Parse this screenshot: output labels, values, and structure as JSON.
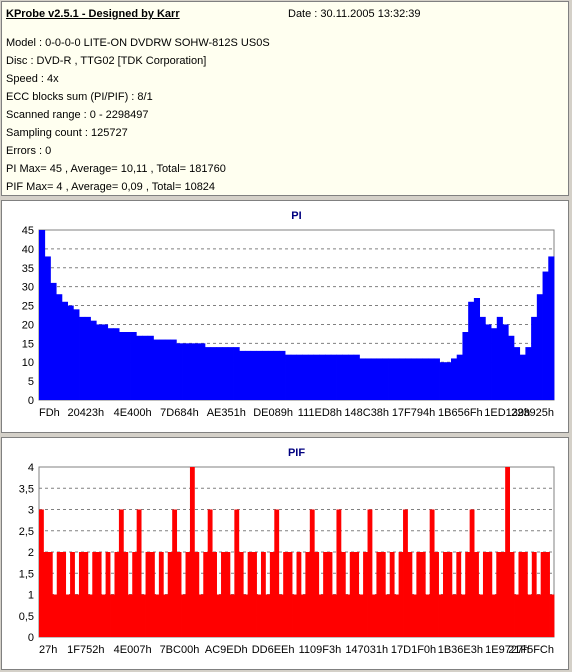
{
  "info": {
    "title": "KProbe v2.5.1 - Designed by Karr",
    "date": "Date : 30.11.2005 13:32:39",
    "lines": [
      "Model : 0-0-0-0 LITE-ON DVDRW SOHW-812S  US0S",
      "Disc : DVD-R , TTG02 [TDK Corporation]",
      "Speed : 4x",
      "ECC blocks sum (PI/PIF) : 8/1",
      "Scanned range : 0 - 2298497",
      "Sampling count : 125727",
      "Errors : 0",
      "PI Max= 45 , Average= 10,11 , Total= 181760",
      "PIF Max= 4 , Average= 0,09 , Total= 10824"
    ]
  },
  "colors": {
    "pi": "#0000ff",
    "pif": "#ff0000",
    "title": "#000080",
    "panel_bg": "#fffff0"
  },
  "chart_data": [
    {
      "type": "area",
      "title": "PI",
      "ylim": [
        0,
        45
      ],
      "yticks": [
        "0",
        "5",
        "10",
        "15",
        "20",
        "25",
        "30",
        "35",
        "40",
        "45"
      ],
      "xticks": [
        "FDh",
        "20423h",
        "4E400h",
        "7D684h",
        "AE351h",
        "DE089h",
        "111ED8h",
        "148C38h",
        "17F794h",
        "1B656Fh",
        "1ED139h",
        "223925h"
      ],
      "grid": true,
      "series": [
        {
          "values": [
            45,
            38,
            31,
            28,
            26,
            25,
            24,
            22,
            22,
            21,
            20,
            20,
            19,
            19,
            18,
            18,
            18,
            17,
            17,
            17,
            16,
            16,
            16,
            16,
            15,
            15,
            15,
            15,
            15,
            14,
            14,
            14,
            14,
            14,
            14,
            13,
            13,
            13,
            13,
            13,
            13,
            13,
            13,
            12,
            12,
            12,
            12,
            12,
            12,
            12,
            12,
            12,
            12,
            12,
            12,
            12,
            11,
            11,
            11,
            11,
            11,
            11,
            11,
            11,
            11,
            11,
            11,
            11,
            11,
            11,
            10,
            10,
            11,
            12,
            18,
            26,
            27,
            22,
            20,
            19,
            22,
            20,
            17,
            14,
            12,
            14,
            22,
            28,
            34,
            38
          ]
        }
      ]
    },
    {
      "type": "bar",
      "title": "PIF",
      "ylim": [
        0,
        4
      ],
      "yticks": [
        "0",
        "0,5",
        "1",
        "1,5",
        "2",
        "2,5",
        "3",
        "3,5",
        "4"
      ],
      "xticks": [
        "27h",
        "1F752h",
        "4E007h",
        "7BC00h",
        "AC9EDh",
        "DD6EEh",
        "1109F3h",
        "147031h",
        "17D1F0h",
        "1B36E3h",
        "1E9727h",
        "21F5FCh"
      ],
      "grid": true,
      "series": [
        {
          "values": [
            3,
            2,
            2,
            1,
            2,
            2,
            1,
            2,
            1,
            2,
            2,
            1,
            2,
            2,
            1,
            2,
            1,
            2,
            3,
            2,
            1,
            2,
            3,
            1,
            2,
            2,
            1,
            2,
            1,
            2,
            3,
            2,
            1,
            2,
            4,
            2,
            1,
            2,
            3,
            2,
            1,
            2,
            2,
            1,
            3,
            2,
            1,
            2,
            2,
            1,
            2,
            1,
            2,
            3,
            1,
            2,
            2,
            1,
            2,
            1,
            2,
            3,
            2,
            1,
            2,
            2,
            1,
            3,
            2,
            1,
            2,
            2,
            1,
            2,
            3,
            1,
            2,
            2,
            1,
            2,
            1,
            2,
            3,
            2,
            1,
            2,
            2,
            1,
            3,
            2,
            1,
            2,
            2,
            1,
            2,
            1,
            2,
            3,
            2,
            1,
            2,
            2,
            1,
            2,
            2,
            4,
            2,
            1,
            2,
            2,
            1,
            2,
            1,
            2,
            2,
            1
          ]
        }
      ]
    }
  ]
}
